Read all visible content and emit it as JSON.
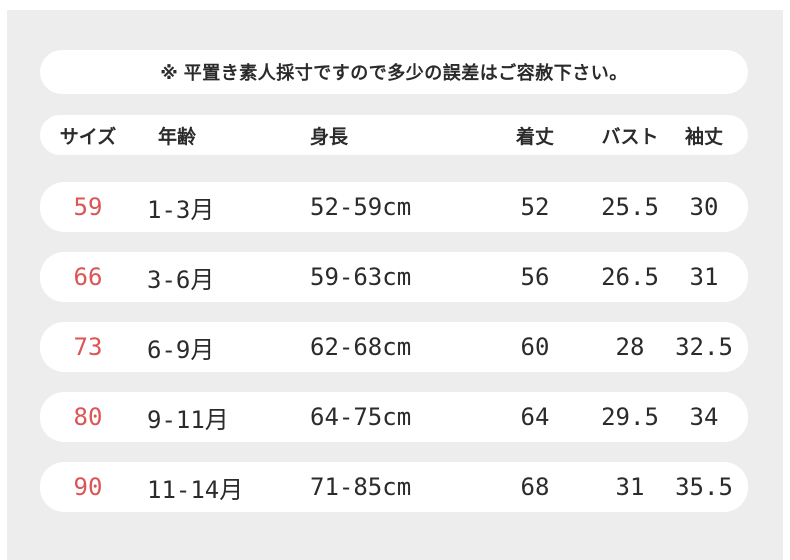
{
  "page": {
    "background": "#ffffff",
    "panel_background": "#ededed",
    "card_background": "#ffffff",
    "text_color": "#2b2b2b",
    "size_accent_color": "#dc5456"
  },
  "notice": {
    "text": "※ 平置き素人採寸ですので多少の誤差はご容赦下さい。"
  },
  "table": {
    "columns": [
      {
        "key": "size",
        "label": "サイズ"
      },
      {
        "key": "age",
        "label": "年齢"
      },
      {
        "key": "height",
        "label": "身長"
      },
      {
        "key": "length",
        "label": "着丈"
      },
      {
        "key": "bust",
        "label": "バスト"
      },
      {
        "key": "sleeve",
        "label": "袖丈"
      }
    ],
    "rows": [
      {
        "size": "59",
        "age": "1-3月",
        "height": "52-59cm",
        "length": "52",
        "bust": "25.5",
        "sleeve": "30"
      },
      {
        "size": "66",
        "age": "3-6月",
        "height": "59-63cm",
        "length": "56",
        "bust": "26.5",
        "sleeve": "31"
      },
      {
        "size": "73",
        "age": "6-9月",
        "height": "62-68cm",
        "length": "60",
        "bust": "28",
        "sleeve": "32.5"
      },
      {
        "size": "80",
        "age": "9-11月",
        "height": "64-75cm",
        "length": "64",
        "bust": "29.5",
        "sleeve": "34"
      },
      {
        "size": "90",
        "age": "11-14月",
        "height": "71-85cm",
        "length": "68",
        "bust": "31",
        "sleeve": "35.5"
      }
    ]
  },
  "chart_data": {
    "type": "table",
    "title": "※ 平置き素人採寸ですので多少の誤差はご容赦下さい。",
    "columns": [
      "サイズ",
      "年齢",
      "身長",
      "着丈",
      "バスト",
      "袖丈"
    ],
    "rows": [
      [
        "59",
        "1-3月",
        "52-59cm",
        "52",
        "25.5",
        "30"
      ],
      [
        "66",
        "3-6月",
        "59-63cm",
        "56",
        "26.5",
        "31"
      ],
      [
        "73",
        "6-9月",
        "62-68cm",
        "60",
        "28",
        "32.5"
      ],
      [
        "80",
        "9-11月",
        "64-75cm",
        "64",
        "29.5",
        "34"
      ],
      [
        "90",
        "11-14月",
        "71-85cm",
        "68",
        "31",
        "35.5"
      ]
    ]
  }
}
